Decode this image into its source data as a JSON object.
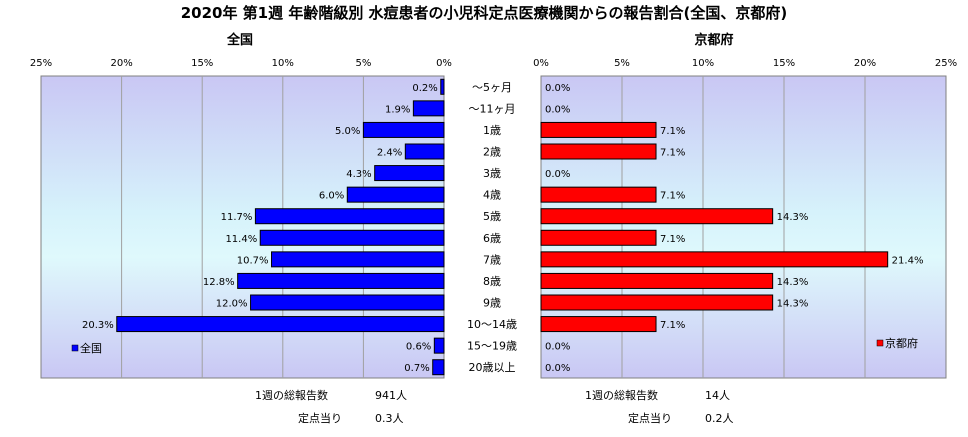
{
  "title": "2020年 第1週 年齢階級別 水痘患者の小児科定点医療機関からの報告割合(全国、京都府)",
  "chart_data": [
    {
      "type": "bar",
      "orientation": "horizontal",
      "direction": "right-to-left",
      "title": "全国",
      "categories": [
        "～5ヶ月",
        "～11ヶ月",
        "1歳",
        "2歳",
        "3歳",
        "4歳",
        "5歳",
        "6歳",
        "7歳",
        "8歳",
        "9歳",
        "10～14歳",
        "15～19歳",
        "20歳以上"
      ],
      "series": [
        {
          "name": "全国",
          "values": [
            0.2,
            1.9,
            5.0,
            2.4,
            4.3,
            6.0,
            11.7,
            11.4,
            10.7,
            12.8,
            12.0,
            20.3,
            0.6,
            0.7
          ],
          "labels": [
            "0.2%",
            "1.9%",
            "5.0%",
            "2.4%",
            "4.3%",
            "6.0%",
            "11.7%",
            "11.4%",
            "10.7%",
            "12.8%",
            "12.0%",
            "20.3%",
            "0.6%",
            "0.7%"
          ],
          "color": "#0000ff"
        }
      ],
      "xlim": [
        0,
        25
      ],
      "xticks": [
        "25%",
        "20%",
        "15%",
        "10%",
        "5%",
        "0%"
      ],
      "grid": true,
      "legend": "bottom-left",
      "footer": {
        "total_label": "1週の総報告数",
        "total_value": "941人",
        "per_site_label": "定点当り",
        "per_site_value": "0.3人"
      }
    },
    {
      "type": "bar",
      "orientation": "horizontal",
      "title": "京都府",
      "categories": [
        "～5ヶ月",
        "～11ヶ月",
        "1歳",
        "2歳",
        "3歳",
        "4歳",
        "5歳",
        "6歳",
        "7歳",
        "8歳",
        "9歳",
        "10～14歳",
        "15～19歳",
        "20歳以上"
      ],
      "series": [
        {
          "name": "京都府",
          "values": [
            0.0,
            0.0,
            7.1,
            7.1,
            0.0,
            7.1,
            14.3,
            7.1,
            21.4,
            14.3,
            14.3,
            7.1,
            0.0,
            0.0
          ],
          "labels": [
            "0.0%",
            "0.0%",
            "7.1%",
            "7.1%",
            "0.0%",
            "7.1%",
            "14.3%",
            "7.1%",
            "21.4%",
            "14.3%",
            "14.3%",
            "7.1%",
            "0.0%",
            "0.0%"
          ],
          "color": "#ff0000"
        }
      ],
      "xlim": [
        0,
        25
      ],
      "xticks": [
        "0%",
        "5%",
        "10%",
        "15%",
        "20%",
        "25%"
      ],
      "grid": true,
      "legend": "bottom-right",
      "footer": {
        "total_label": "1週の総報告数",
        "total_value": "14人",
        "per_site_label": "定点当り",
        "per_site_value": "0.2人"
      }
    }
  ]
}
